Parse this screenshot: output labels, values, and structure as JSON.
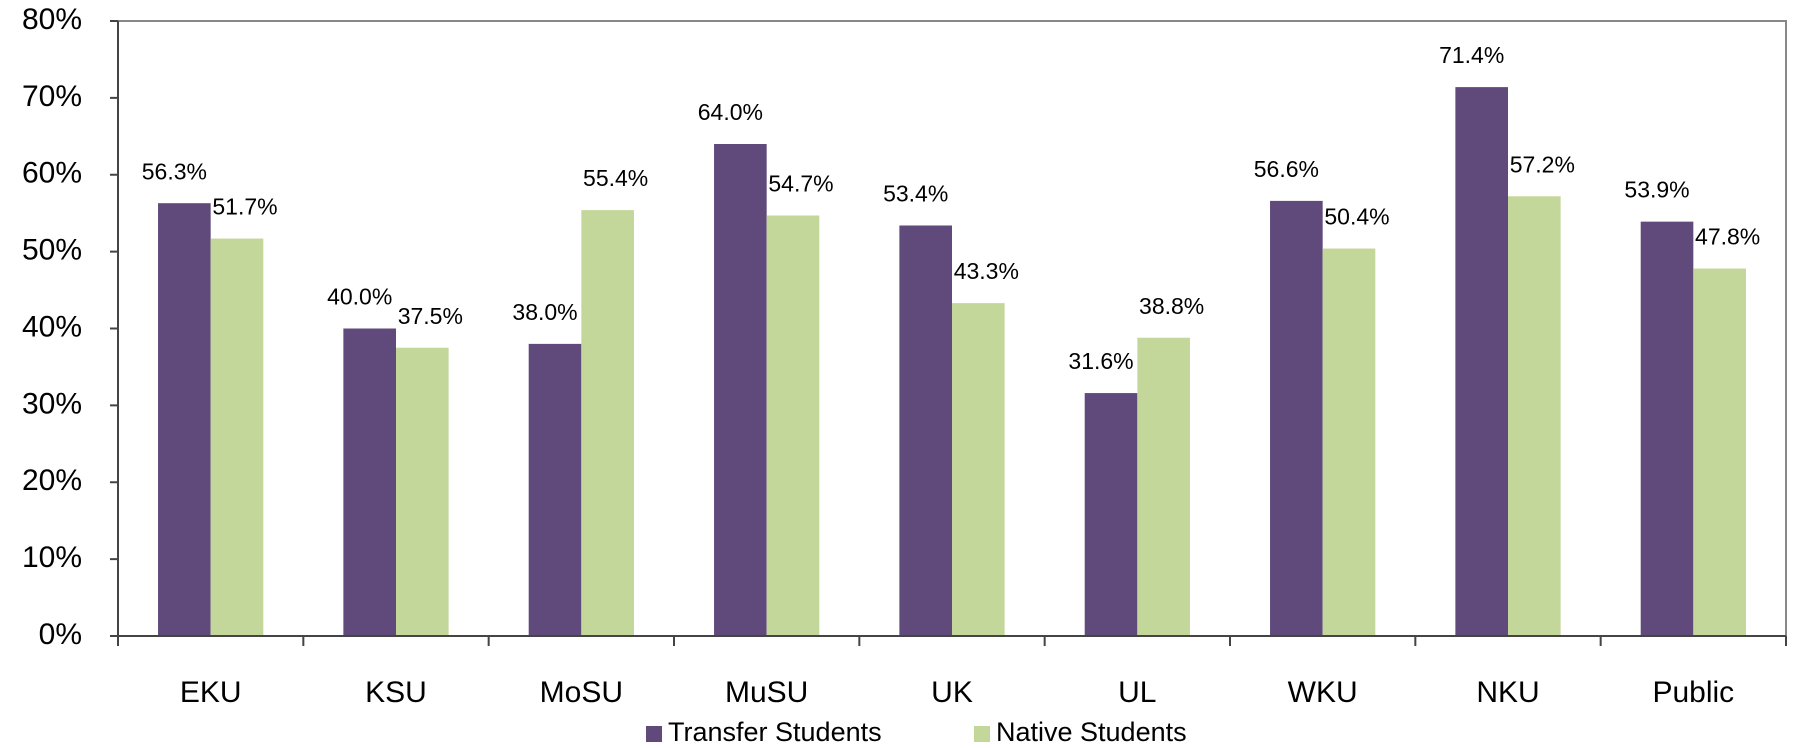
{
  "chart_data": {
    "type": "bar",
    "categories": [
      "EKU",
      "KSU",
      "MoSU",
      "MuSU",
      "UK",
      "UL",
      "WKU",
      "NKU",
      "Public"
    ],
    "series": [
      {
        "name": "Transfer Students",
        "color": "#604a7b",
        "values": [
          56.3,
          40.0,
          38.0,
          64.0,
          53.4,
          31.6,
          56.6,
          71.4,
          53.9
        ],
        "value_labels": [
          "56.3%",
          "40.0%",
          "38.0%",
          "64.0%",
          "53.4%",
          "31.6%",
          "56.6%",
          "71.4%",
          "53.9%"
        ]
      },
      {
        "name": "Native Students",
        "color": "#c4d79b",
        "values": [
          51.7,
          37.5,
          55.4,
          54.7,
          43.3,
          38.8,
          50.4,
          57.2,
          47.8
        ],
        "value_labels": [
          "51.7%",
          "37.5%",
          "55.4%",
          "54.7%",
          "43.3%",
          "38.8%",
          "50.4%",
          "57.2%",
          "47.8%"
        ]
      }
    ],
    "ylim": [
      0,
      80
    ],
    "yticks": [
      {
        "value": 0,
        "label": "0%"
      },
      {
        "value": 10,
        "label": "10%"
      },
      {
        "value": 20,
        "label": "20%"
      },
      {
        "value": 30,
        "label": "30%"
      },
      {
        "value": 40,
        "label": "40%"
      },
      {
        "value": 50,
        "label": "50%"
      },
      {
        "value": 60,
        "label": "60%"
      },
      {
        "value": 70,
        "label": "70%"
      },
      {
        "value": 80,
        "label": "80%"
      }
    ],
    "legend": "bottom"
  }
}
